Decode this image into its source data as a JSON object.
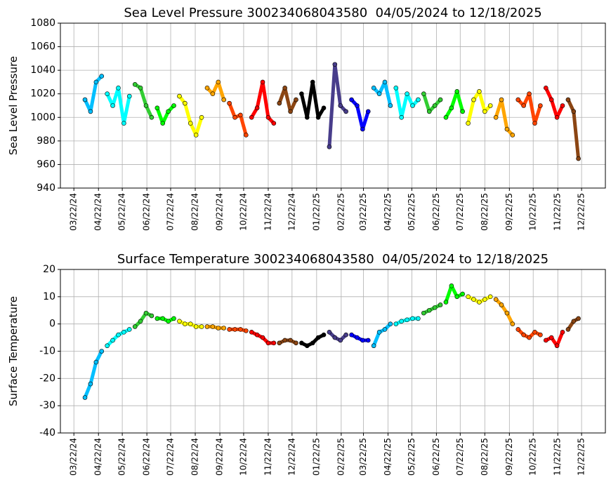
{
  "chart_data": [
    {
      "type": "scatter",
      "title": "Sea Level Pressure 300234068043580  04/05/2024 to 12/18/2025",
      "ylabel": "Sea Level Pressure",
      "xlim": [
        "2024-03-05",
        "2026-01-21"
      ],
      "ylim": [
        940,
        1080
      ],
      "yticks": [
        940,
        960,
        980,
        1000,
        1020,
        1040,
        1060,
        1080
      ],
      "grid": true,
      "xticks": [
        {
          "value": "2024-03-22",
          "label": "03/22/24"
        },
        {
          "value": "2024-04-22",
          "label": "04/22/24"
        },
        {
          "value": "2024-05-22",
          "label": "05/22/24"
        },
        {
          "value": "2024-06-22",
          "label": "06/22/24"
        },
        {
          "value": "2024-07-22",
          "label": "07/22/24"
        },
        {
          "value": "2024-08-22",
          "label": "08/22/24"
        },
        {
          "value": "2024-09-22",
          "label": "09/22/24"
        },
        {
          "value": "2024-10-22",
          "label": "10/22/24"
        },
        {
          "value": "2024-11-22",
          "label": "11/22/24"
        },
        {
          "value": "2024-12-22",
          "label": "12/22/24"
        },
        {
          "value": "2025-01-22",
          "label": "01/22/25"
        },
        {
          "value": "2025-02-22",
          "label": "02/22/25"
        },
        {
          "value": "2025-03-22",
          "label": "03/22/25"
        },
        {
          "value": "2025-04-22",
          "label": "04/22/25"
        },
        {
          "value": "2025-05-22",
          "label": "05/22/25"
        },
        {
          "value": "2025-06-22",
          "label": "06/22/25"
        },
        {
          "value": "2025-07-22",
          "label": "07/22/25"
        },
        {
          "value": "2025-08-22",
          "label": "08/22/25"
        },
        {
          "value": "2025-09-22",
          "label": "09/22/25"
        },
        {
          "value": "2025-10-22",
          "label": "10/22/25"
        },
        {
          "value": "2025-11-22",
          "label": "11/22/25"
        },
        {
          "value": "2025-12-22",
          "label": "12/22/25"
        }
      ],
      "series": [
        {
          "color": "#00bfff",
          "x": [
            "2024-04-05",
            "2024-04-12",
            "2024-04-19",
            "2024-04-26"
          ],
          "values": [
            1015,
            1005,
            1030,
            1035
          ]
        },
        {
          "color": "#00ffff",
          "x": [
            "2024-05-03",
            "2024-05-10",
            "2024-05-17",
            "2024-05-24",
            "2024-05-31"
          ],
          "values": [
            1020,
            1010,
            1025,
            995,
            1018
          ]
        },
        {
          "color": "#32cd32",
          "x": [
            "2024-06-07",
            "2024-06-14",
            "2024-06-21",
            "2024-06-28"
          ],
          "values": [
            1028,
            1025,
            1010,
            1000
          ]
        },
        {
          "color": "#00ff00",
          "x": [
            "2024-07-05",
            "2024-07-12",
            "2024-07-19",
            "2024-07-26"
          ],
          "values": [
            1008,
            995,
            1005,
            1010
          ]
        },
        {
          "color": "#ffff00",
          "x": [
            "2024-08-02",
            "2024-08-09",
            "2024-08-16",
            "2024-08-23",
            "2024-08-30"
          ],
          "values": [
            1018,
            1012,
            995,
            985,
            1000
          ]
        },
        {
          "color": "#ffa500",
          "x": [
            "2024-09-06",
            "2024-09-13",
            "2024-09-20",
            "2024-09-27"
          ],
          "values": [
            1025,
            1020,
            1030,
            1015
          ]
        },
        {
          "color": "#ff4500",
          "x": [
            "2024-10-04",
            "2024-10-11",
            "2024-10-18",
            "2024-10-25"
          ],
          "values": [
            1012,
            1000,
            1002,
            985
          ]
        },
        {
          "color": "#ff0000",
          "x": [
            "2024-11-01",
            "2024-11-08",
            "2024-11-15",
            "2024-11-22",
            "2024-11-29"
          ],
          "values": [
            1000,
            1008,
            1030,
            1000,
            995
          ]
        },
        {
          "color": "#8b4513",
          "x": [
            "2024-12-06",
            "2024-12-13",
            "2024-12-20",
            "2024-12-27"
          ],
          "values": [
            1012,
            1025,
            1005,
            1015
          ]
        },
        {
          "color": "#000000",
          "x": [
            "2025-01-03",
            "2025-01-10",
            "2025-01-17",
            "2025-01-24",
            "2025-01-31"
          ],
          "values": [
            1020,
            1000,
            1030,
            1000,
            1008
          ]
        },
        {
          "color": "#483d8b",
          "x": [
            "2025-02-07",
            "2025-02-14",
            "2025-02-21",
            "2025-02-28"
          ],
          "values": [
            975,
            1045,
            1010,
            1005
          ]
        },
        {
          "color": "#0000ff",
          "x": [
            "2025-03-07",
            "2025-03-14",
            "2025-03-21",
            "2025-03-28"
          ],
          "values": [
            1015,
            1010,
            990,
            1005
          ]
        },
        {
          "color": "#00bfff",
          "x": [
            "2025-04-04",
            "2025-04-11",
            "2025-04-18",
            "2025-04-25"
          ],
          "values": [
            1025,
            1020,
            1030,
            1010
          ]
        },
        {
          "color": "#00ffff",
          "x": [
            "2025-05-02",
            "2025-05-09",
            "2025-05-16",
            "2025-05-23",
            "2025-05-30"
          ],
          "values": [
            1025,
            1000,
            1020,
            1010,
            1015
          ]
        },
        {
          "color": "#32cd32",
          "x": [
            "2025-06-06",
            "2025-06-13",
            "2025-06-20",
            "2025-06-27"
          ],
          "values": [
            1020,
            1005,
            1010,
            1015
          ]
        },
        {
          "color": "#00ff00",
          "x": [
            "2025-07-04",
            "2025-07-11",
            "2025-07-18",
            "2025-07-25"
          ],
          "values": [
            1000,
            1008,
            1022,
            1005
          ]
        },
        {
          "color": "#ffff00",
          "x": [
            "2025-08-01",
            "2025-08-08",
            "2025-08-15",
            "2025-08-22",
            "2025-08-29"
          ],
          "values": [
            995,
            1015,
            1022,
            1005,
            1010
          ]
        },
        {
          "color": "#ffa500",
          "x": [
            "2025-09-05",
            "2025-09-12",
            "2025-09-19",
            "2025-09-26"
          ],
          "values": [
            1000,
            1015,
            990,
            985
          ]
        },
        {
          "color": "#ff4500",
          "x": [
            "2025-10-03",
            "2025-10-10",
            "2025-10-17",
            "2025-10-24",
            "2025-10-31"
          ],
          "values": [
            1015,
            1010,
            1020,
            995,
            1010
          ]
        },
        {
          "color": "#ff0000",
          "x": [
            "2025-11-07",
            "2025-11-14",
            "2025-11-21",
            "2025-11-28"
          ],
          "values": [
            1025,
            1015,
            1000,
            1010
          ]
        },
        {
          "color": "#8b4513",
          "x": [
            "2025-12-05",
            "2025-12-12",
            "2025-12-18"
          ],
          "values": [
            1015,
            1005,
            965
          ]
        }
      ]
    },
    {
      "type": "scatter",
      "title": "Surface Temperature 300234068043580  04/05/2024 to 12/18/2025",
      "ylabel": "Surface Temperature",
      "xlim": [
        "2024-03-05",
        "2026-01-21"
      ],
      "ylim": [
        -40,
        20
      ],
      "yticks": [
        -40,
        -30,
        -20,
        -10,
        0,
        10,
        20
      ],
      "grid": true,
      "xticks": [
        {
          "value": "2024-03-22",
          "label": "03/22/24"
        },
        {
          "value": "2024-04-22",
          "label": "04/22/24"
        },
        {
          "value": "2024-05-22",
          "label": "05/22/24"
        },
        {
          "value": "2024-06-22",
          "label": "06/22/24"
        },
        {
          "value": "2024-07-22",
          "label": "07/22/24"
        },
        {
          "value": "2024-08-22",
          "label": "08/22/24"
        },
        {
          "value": "2024-09-22",
          "label": "09/22/24"
        },
        {
          "value": "2024-10-22",
          "label": "10/22/24"
        },
        {
          "value": "2024-11-22",
          "label": "11/22/24"
        },
        {
          "value": "2024-12-22",
          "label": "12/22/24"
        },
        {
          "value": "2025-01-22",
          "label": "01/22/25"
        },
        {
          "value": "2025-02-22",
          "label": "02/22/25"
        },
        {
          "value": "2025-03-22",
          "label": "03/22/25"
        },
        {
          "value": "2025-04-22",
          "label": "04/22/25"
        },
        {
          "value": "2025-05-22",
          "label": "05/22/25"
        },
        {
          "value": "2025-06-22",
          "label": "06/22/25"
        },
        {
          "value": "2025-07-22",
          "label": "07/22/25"
        },
        {
          "value": "2025-08-22",
          "label": "08/22/25"
        },
        {
          "value": "2025-09-22",
          "label": "09/22/25"
        },
        {
          "value": "2025-10-22",
          "label": "10/22/25"
        },
        {
          "value": "2025-11-22",
          "label": "11/22/25"
        },
        {
          "value": "2025-12-22",
          "label": "12/22/25"
        }
      ],
      "series": [
        {
          "color": "#00bfff",
          "x": [
            "2024-04-05",
            "2024-04-12",
            "2024-04-19",
            "2024-04-26"
          ],
          "values": [
            -27,
            -22,
            -14,
            -10
          ]
        },
        {
          "color": "#00ffff",
          "x": [
            "2024-05-03",
            "2024-05-10",
            "2024-05-17",
            "2024-05-24",
            "2024-05-31"
          ],
          "values": [
            -8,
            -6,
            -4,
            -3,
            -2
          ]
        },
        {
          "color": "#32cd32",
          "x": [
            "2024-06-07",
            "2024-06-14",
            "2024-06-21",
            "2024-06-28"
          ],
          "values": [
            -1,
            1,
            4,
            3
          ]
        },
        {
          "color": "#00ff00",
          "x": [
            "2024-07-05",
            "2024-07-12",
            "2024-07-19",
            "2024-07-26"
          ],
          "values": [
            2,
            2,
            1,
            2
          ]
        },
        {
          "color": "#ffff00",
          "x": [
            "2024-08-02",
            "2024-08-09",
            "2024-08-16",
            "2024-08-23",
            "2024-08-30"
          ],
          "values": [
            1,
            0,
            0,
            -1,
            -1
          ]
        },
        {
          "color": "#ffa500",
          "x": [
            "2024-09-06",
            "2024-09-13",
            "2024-09-20",
            "2024-09-27"
          ],
          "values": [
            -1,
            -1,
            -1.5,
            -1.5
          ]
        },
        {
          "color": "#ff4500",
          "x": [
            "2024-10-04",
            "2024-10-11",
            "2024-10-18",
            "2024-10-25"
          ],
          "values": [
            -2,
            -2,
            -2,
            -2.5
          ]
        },
        {
          "color": "#ff0000",
          "x": [
            "2024-11-01",
            "2024-11-08",
            "2024-11-15",
            "2024-11-22",
            "2024-11-29"
          ],
          "values": [
            -3,
            -4,
            -5,
            -7,
            -7
          ]
        },
        {
          "color": "#8b4513",
          "x": [
            "2024-12-06",
            "2024-12-13",
            "2024-12-20",
            "2024-12-27"
          ],
          "values": [
            -7,
            -6,
            -6,
            -7
          ]
        },
        {
          "color": "#000000",
          "x": [
            "2025-01-03",
            "2025-01-10",
            "2025-01-17",
            "2025-01-24",
            "2025-01-31"
          ],
          "values": [
            -7,
            -8,
            -7,
            -5,
            -4
          ]
        },
        {
          "color": "#483d8b",
          "x": [
            "2025-02-07",
            "2025-02-14",
            "2025-02-21",
            "2025-02-28"
          ],
          "values": [
            -3,
            -5,
            -6,
            -4
          ]
        },
        {
          "color": "#0000ff",
          "x": [
            "2025-03-07",
            "2025-03-14",
            "2025-03-21",
            "2025-03-28"
          ],
          "values": [
            -4,
            -5,
            -6,
            -6
          ]
        },
        {
          "color": "#00bfff",
          "x": [
            "2025-04-04",
            "2025-04-11",
            "2025-04-18",
            "2025-04-25"
          ],
          "values": [
            -8,
            -3,
            -2,
            0
          ]
        },
        {
          "color": "#00ffff",
          "x": [
            "2025-05-02",
            "2025-05-09",
            "2025-05-16",
            "2025-05-23",
            "2025-05-30"
          ],
          "values": [
            0,
            1,
            1.5,
            2,
            2
          ]
        },
        {
          "color": "#32cd32",
          "x": [
            "2025-06-06",
            "2025-06-13",
            "2025-06-20",
            "2025-06-27"
          ],
          "values": [
            4,
            5,
            6,
            7
          ]
        },
        {
          "color": "#00ff00",
          "x": [
            "2025-07-04",
            "2025-07-11",
            "2025-07-18",
            "2025-07-25"
          ],
          "values": [
            8,
            14,
            10,
            11
          ]
        },
        {
          "color": "#ffff00",
          "x": [
            "2025-08-01",
            "2025-08-08",
            "2025-08-15",
            "2025-08-22",
            "2025-08-29"
          ],
          "values": [
            10,
            9,
            8,
            9,
            10
          ]
        },
        {
          "color": "#ffa500",
          "x": [
            "2025-09-05",
            "2025-09-12",
            "2025-09-19",
            "2025-09-26"
          ],
          "values": [
            9,
            7,
            4,
            0
          ]
        },
        {
          "color": "#ff4500",
          "x": [
            "2025-10-03",
            "2025-10-10",
            "2025-10-17",
            "2025-10-24",
            "2025-10-31"
          ],
          "values": [
            -2,
            -4,
            -5,
            -3,
            -4
          ]
        },
        {
          "color": "#ff0000",
          "x": [
            "2025-11-07",
            "2025-11-14",
            "2025-11-21",
            "2025-11-28"
          ],
          "values": [
            -6,
            -5,
            -8,
            -3
          ]
        },
        {
          "color": "#8b4513",
          "x": [
            "2025-12-05",
            "2025-12-12",
            "2025-12-18"
          ],
          "values": [
            -2,
            1,
            2
          ]
        }
      ]
    }
  ]
}
